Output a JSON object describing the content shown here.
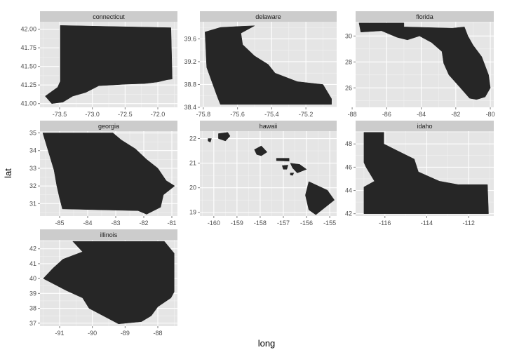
{
  "chart_data": {
    "type": "map",
    "xlabel": "long",
    "ylabel": "lat",
    "grid": true,
    "panels": [
      {
        "title": "connecticut",
        "xlim": [
          -73.8,
          -71.7
        ],
        "ylim": [
          40.95,
          42.1
        ],
        "xticks": [
          -73.5,
          -73.0,
          -72.5,
          -72.0
        ],
        "xtick_labels": [
          "-73.5",
          "-73.0",
          "-72.5",
          "-72.0"
        ],
        "yticks": [
          41.0,
          41.25,
          41.5,
          41.75,
          42.0
        ],
        "ytick_labels": [
          "41.00",
          "41.25",
          "41.50",
          "41.75",
          "42.00"
        ],
        "shapes": [
          [
            [
              -73.49,
              42.05
            ],
            [
              -71.8,
              42.02
            ],
            [
              -71.78,
              41.33
            ],
            [
              -71.86,
              41.32
            ],
            [
              -72.0,
              41.29
            ],
            [
              -72.2,
              41.27
            ],
            [
              -72.5,
              41.26
            ],
            [
              -72.7,
              41.25
            ],
            [
              -72.9,
              41.24
            ],
            [
              -73.1,
              41.15
            ],
            [
              -73.3,
              41.1
            ],
            [
              -73.45,
              41.02
            ],
            [
              -73.62,
              41.0
            ],
            [
              -73.72,
              41.1
            ],
            [
              -73.53,
              41.22
            ],
            [
              -73.49,
              41.3
            ]
          ]
        ]
      },
      {
        "title": "delaware",
        "xlim": [
          -75.82,
          -75.02
        ],
        "ylim": [
          38.4,
          39.9
        ],
        "xticks": [
          -75.8,
          -75.6,
          -75.4,
          -75.2
        ],
        "xtick_labels": [
          "-75.8",
          "-75.6",
          "-75.4",
          "-75.2"
        ],
        "yticks": [
          38.4,
          38.8,
          39.2,
          39.6
        ],
        "ytick_labels": [
          "38.4",
          "38.8",
          "39.2",
          "39.6"
        ],
        "shapes": [
          [
            [
              -75.79,
              39.72
            ],
            [
              -75.7,
              39.8
            ],
            [
              -75.58,
              39.82
            ],
            [
              -75.5,
              39.83
            ],
            [
              -75.58,
              39.7
            ],
            [
              -75.57,
              39.5
            ],
            [
              -75.5,
              39.3
            ],
            [
              -75.42,
              39.15
            ],
            [
              -75.38,
              39.0
            ],
            [
              -75.25,
              38.85
            ],
            [
              -75.1,
              38.8
            ],
            [
              -75.05,
              38.55
            ],
            [
              -75.05,
              38.45
            ],
            [
              -75.7,
              38.45
            ],
            [
              -75.72,
              38.6
            ],
            [
              -75.78,
              39.1
            ]
          ]
        ]
      },
      {
        "title": "florida",
        "xlim": [
          -87.8,
          -79.8
        ],
        "ylim": [
          24.5,
          31.1
        ],
        "xticks": [
          -88,
          -86,
          -84,
          -82,
          -80
        ],
        "xtick_labels": [
          "-88",
          "-86",
          "-84",
          "-82",
          "-80"
        ],
        "yticks": [
          26,
          28,
          30
        ],
        "ytick_labels": [
          "26",
          "28",
          "30"
        ],
        "shapes": [
          [
            [
              -87.6,
              31.0
            ],
            [
              -85.0,
              31.0
            ],
            [
              -85.0,
              30.7
            ],
            [
              -84.9,
              30.7
            ],
            [
              -82.2,
              30.6
            ],
            [
              -81.5,
              30.7
            ],
            [
              -81.3,
              30.0
            ],
            [
              -81.0,
              29.3
            ],
            [
              -80.5,
              28.4
            ],
            [
              -80.1,
              27.0
            ],
            [
              -80.0,
              26.0
            ],
            [
              -80.3,
              25.3
            ],
            [
              -80.8,
              25.1
            ],
            [
              -81.2,
              25.2
            ],
            [
              -81.8,
              26.1
            ],
            [
              -82.4,
              27.0
            ],
            [
              -82.7,
              27.9
            ],
            [
              -82.8,
              28.8
            ],
            [
              -83.4,
              29.5
            ],
            [
              -84.1,
              30.0
            ],
            [
              -84.8,
              29.7
            ],
            [
              -85.4,
              29.9
            ],
            [
              -86.3,
              30.4
            ],
            [
              -87.5,
              30.3
            ]
          ]
        ]
      },
      {
        "title": "georgia",
        "xlim": [
          -85.7,
          -80.8
        ],
        "ylim": [
          30.3,
          35.1
        ],
        "xticks": [
          -85,
          -84,
          -83,
          -82,
          -81
        ],
        "xtick_labels": [
          "-85",
          "-84",
          "-83",
          "-82",
          "-81"
        ],
        "yticks": [
          31,
          32,
          33,
          34,
          35
        ],
        "ytick_labels": [
          "31",
          "32",
          "33",
          "34",
          "35"
        ],
        "shapes": [
          [
            [
              -85.6,
              35.0
            ],
            [
              -83.1,
              35.0
            ],
            [
              -82.8,
              34.6
            ],
            [
              -82.3,
              34.1
            ],
            [
              -81.9,
              33.5
            ],
            [
              -81.5,
              33.0
            ],
            [
              -81.2,
              32.3
            ],
            [
              -80.9,
              32.0
            ],
            [
              -81.3,
              31.5
            ],
            [
              -81.4,
              30.8
            ],
            [
              -81.9,
              30.4
            ],
            [
              -82.2,
              30.6
            ],
            [
              -84.9,
              30.7
            ],
            [
              -85.0,
              31.3
            ],
            [
              -85.1,
              32.0
            ],
            [
              -85.2,
              32.9
            ]
          ]
        ]
      },
      {
        "title": "hawaii",
        "xlim": [
          -160.6,
          -154.7
        ],
        "ylim": [
          18.85,
          22.3
        ],
        "xticks": [
          -160,
          -159,
          -158,
          -157,
          -156,
          -155
        ],
        "xtick_labels": [
          "-160",
          "-159",
          "-158",
          "-157",
          "-156",
          "-155"
        ],
        "yticks": [
          19,
          20,
          21,
          22
        ],
        "ytick_labels": [
          "19",
          "20",
          "21",
          "22"
        ],
        "shapes": [
          [
            [
              -159.8,
              22.2
            ],
            [
              -159.4,
              22.25
            ],
            [
              -159.3,
              22.1
            ],
            [
              -159.5,
              21.9
            ],
            [
              -159.8,
              22.0
            ]
          ],
          [
            [
              -160.25,
              22.0
            ],
            [
              -160.1,
              22.0
            ],
            [
              -160.15,
              21.85
            ],
            [
              -160.25,
              21.9
            ]
          ],
          [
            [
              -158.25,
              21.55
            ],
            [
              -157.95,
              21.7
            ],
            [
              -157.7,
              21.45
            ],
            [
              -157.95,
              21.3
            ],
            [
              -158.15,
              21.35
            ]
          ],
          [
            [
              -157.3,
              21.2
            ],
            [
              -156.75,
              21.2
            ],
            [
              -156.75,
              21.08
            ],
            [
              -157.3,
              21.1
            ]
          ],
          [
            [
              -157.05,
              20.9
            ],
            [
              -156.8,
              20.92
            ],
            [
              -156.85,
              20.75
            ],
            [
              -157.0,
              20.75
            ]
          ],
          [
            [
              -156.7,
              21.0
            ],
            [
              -156.3,
              20.95
            ],
            [
              -156.0,
              20.75
            ],
            [
              -156.4,
              20.6
            ],
            [
              -156.6,
              20.8
            ]
          ],
          [
            [
              -156.7,
              20.6
            ],
            [
              -156.55,
              20.6
            ],
            [
              -156.6,
              20.5
            ],
            [
              -156.7,
              20.52
            ]
          ],
          [
            [
              -155.9,
              20.25
            ],
            [
              -155.1,
              19.9
            ],
            [
              -154.8,
              19.5
            ],
            [
              -155.6,
              18.9
            ],
            [
              -155.9,
              19.1
            ],
            [
              -156.05,
              19.7
            ]
          ]
        ]
      },
      {
        "title": "idaho",
        "xlim": [
          -117.4,
          -110.8
        ],
        "ylim": [
          41.8,
          49.1
        ],
        "xticks": [
          -116,
          -114,
          -112
        ],
        "xtick_labels": [
          "-116",
          "-114",
          "-112"
        ],
        "yticks": [
          42,
          44,
          46,
          48
        ],
        "ytick_labels": [
          "42",
          "44",
          "46",
          "48"
        ],
        "shapes": [
          [
            [
              -117.0,
              49.0
            ],
            [
              -116.05,
              49.0
            ],
            [
              -116.05,
              48.0
            ],
            [
              -115.5,
              47.5
            ],
            [
              -114.6,
              46.7
            ],
            [
              -114.4,
              45.6
            ],
            [
              -113.4,
              44.8
            ],
            [
              -112.5,
              44.5
            ],
            [
              -111.1,
              44.5
            ],
            [
              -111.05,
              42.0
            ],
            [
              -117.0,
              42.0
            ],
            [
              -117.0,
              44.3
            ],
            [
              -116.5,
              44.8
            ],
            [
              -116.9,
              46.0
            ],
            [
              -117.0,
              46.4
            ]
          ]
        ]
      },
      {
        "title": "illinois",
        "xlim": [
          -91.6,
          -87.4
        ],
        "ylim": [
          36.8,
          42.6
        ],
        "xticks": [
          -91,
          -90,
          -89,
          -88
        ],
        "xtick_labels": [
          "-91",
          "-90",
          "-89",
          "-88"
        ],
        "yticks": [
          37,
          38,
          39,
          40,
          41,
          42
        ],
        "ytick_labels": [
          "37",
          "38",
          "39",
          "40",
          "41",
          "42"
        ],
        "shapes": [
          [
            [
              -90.6,
              42.5
            ],
            [
              -87.8,
              42.5
            ],
            [
              -87.5,
              41.7
            ],
            [
              -87.5,
              39.1
            ],
            [
              -87.6,
              38.7
            ],
            [
              -88.0,
              38.1
            ],
            [
              -88.2,
              37.5
            ],
            [
              -88.5,
              37.1
            ],
            [
              -89.2,
              36.95
            ],
            [
              -89.5,
              37.3
            ],
            [
              -90.1,
              38.0
            ],
            [
              -90.3,
              38.7
            ],
            [
              -90.8,
              39.2
            ],
            [
              -91.5,
              40.0
            ],
            [
              -91.2,
              40.7
            ],
            [
              -90.9,
              41.3
            ],
            [
              -90.3,
              41.8
            ]
          ]
        ]
      }
    ]
  }
}
